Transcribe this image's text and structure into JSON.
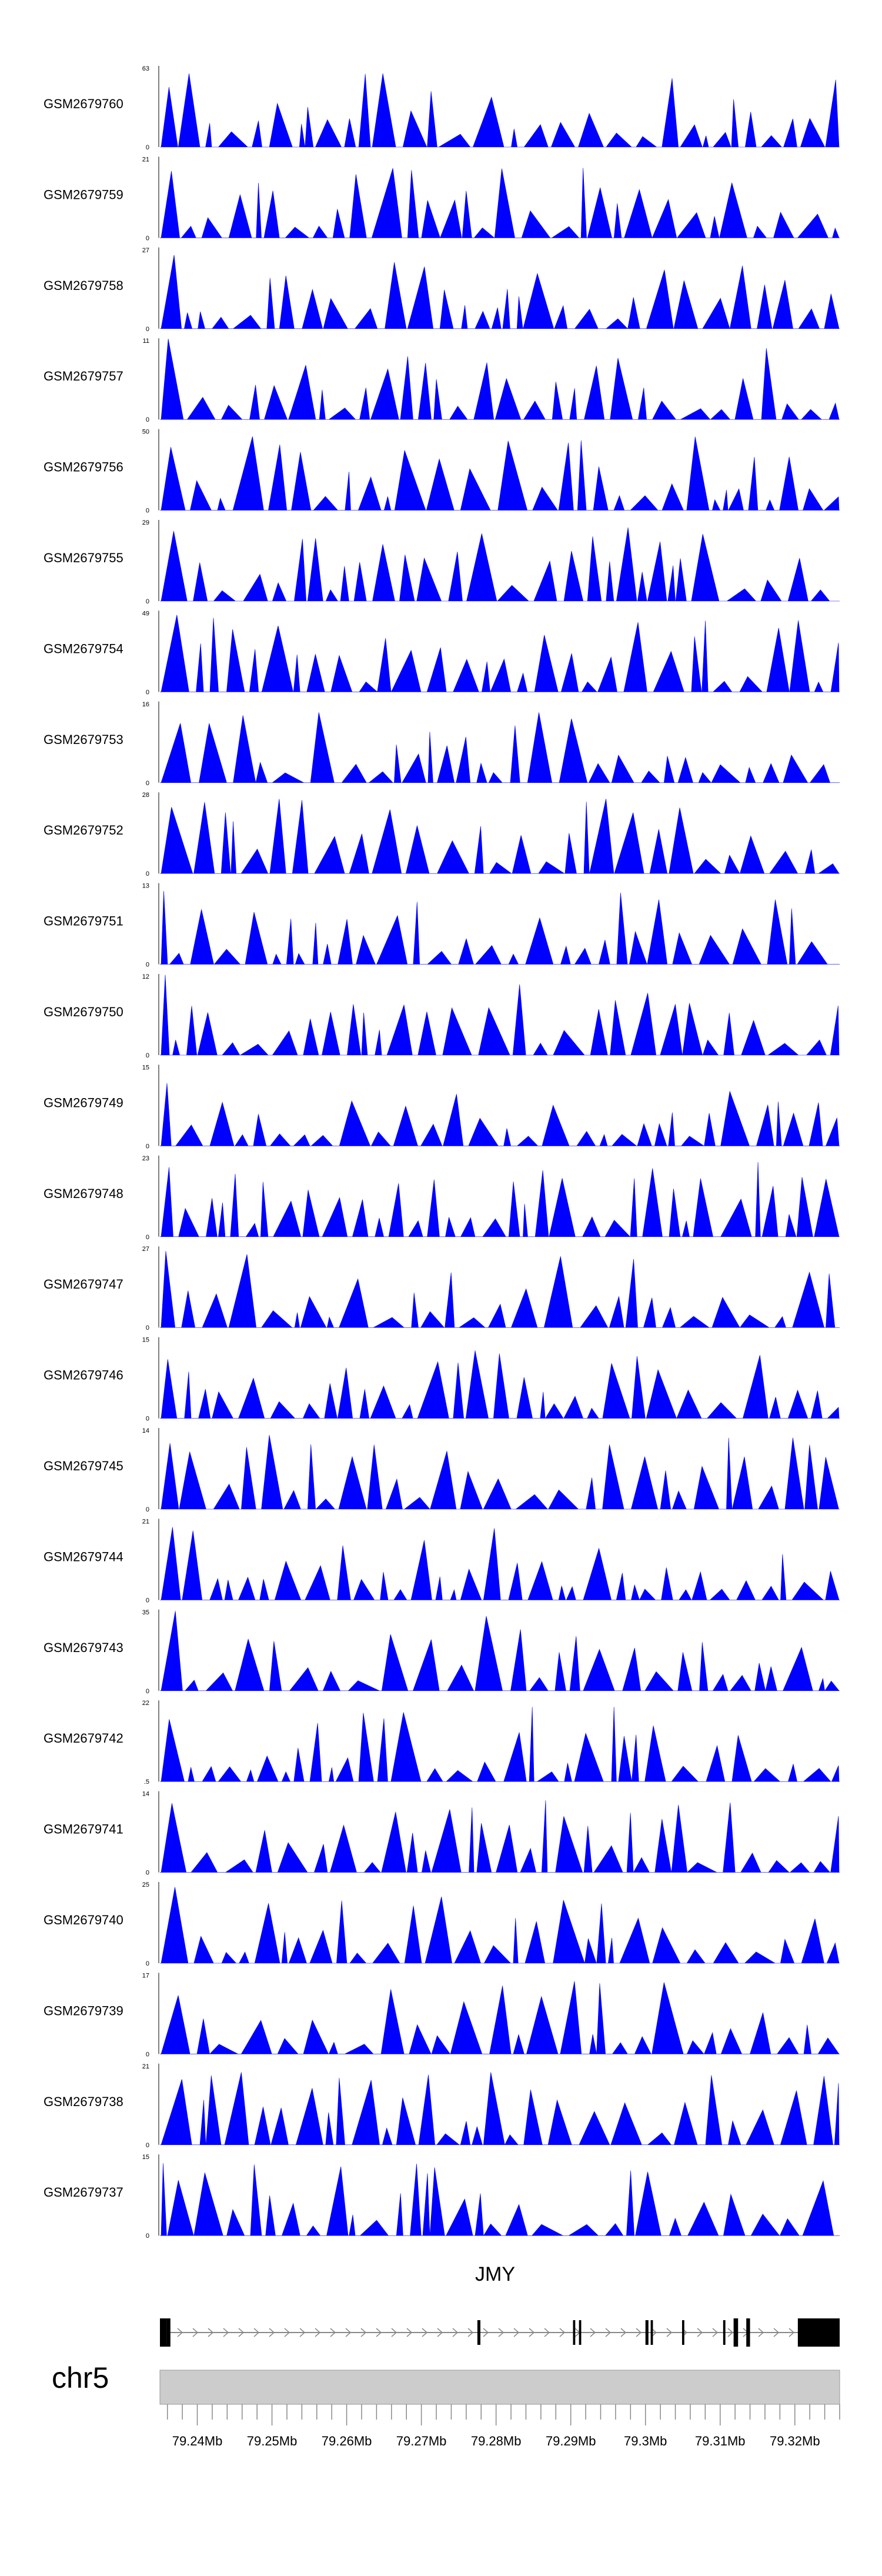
{
  "chart_data": {
    "type": "area",
    "series_color": "#0000ff",
    "gene_label": "JMY",
    "chromosome": "chr5",
    "region": {
      "start": 79235000,
      "end": 79326000
    },
    "x_ticks": [
      79240000,
      79250000,
      79260000,
      79270000,
      79280000,
      79290000,
      79300000,
      79310000,
      79320000
    ],
    "x_tick_labels": [
      "79.24Mb",
      "79.25Mb",
      "79.26Mb",
      "79.27Mb",
      "79.28Mb",
      "79.29Mb",
      "79.3Mb",
      "79.31Mb",
      "79.32Mb"
    ],
    "tracks": [
      {
        "name": "GSM2679760",
        "ymax": 63,
        "ymin_label": "0"
      },
      {
        "name": "GSM2679759",
        "ymax": 21,
        "ymin_label": "0"
      },
      {
        "name": "GSM2679758",
        "ymax": 27,
        "ymin_label": "0"
      },
      {
        "name": "GSM2679757",
        "ymax": 11,
        "ymin_label": "0"
      },
      {
        "name": "GSM2679756",
        "ymax": 50,
        "ymin_label": "0"
      },
      {
        "name": "GSM2679755",
        "ymax": 29,
        "ymin_label": "0"
      },
      {
        "name": "GSM2679754",
        "ymax": 49,
        "ymin_label": "0"
      },
      {
        "name": "GSM2679753",
        "ymax": 16,
        "ymin_label": "0"
      },
      {
        "name": "GSM2679752",
        "ymax": 28,
        "ymin_label": "0"
      },
      {
        "name": "GSM2679751",
        "ymax": 13,
        "ymin_label": "0"
      },
      {
        "name": "GSM2679750",
        "ymax": 12,
        "ymin_label": "0"
      },
      {
        "name": "GSM2679749",
        "ymax": 15,
        "ymin_label": "0"
      },
      {
        "name": "GSM2679748",
        "ymax": 23,
        "ymin_label": "0"
      },
      {
        "name": "GSM2679747",
        "ymax": 27,
        "ymin_label": "0"
      },
      {
        "name": "GSM2679746",
        "ymax": 15,
        "ymin_label": "0"
      },
      {
        "name": "GSM2679745",
        "ymax": 14,
        "ymin_label": "0"
      },
      {
        "name": "GSM2679744",
        "ymax": 21,
        "ymin_label": "0"
      },
      {
        "name": "GSM2679743",
        "ymax": 35,
        "ymin_label": "0"
      },
      {
        "name": "GSM2679742",
        "ymax": 22,
        "ymin_label": ".5"
      },
      {
        "name": "GSM2679741",
        "ymax": 14,
        "ymin_label": "0"
      },
      {
        "name": "GSM2679740",
        "ymax": 25,
        "ymin_label": "0"
      },
      {
        "name": "GSM2679739",
        "ymax": 17,
        "ymin_label": "0"
      },
      {
        "name": "GSM2679738",
        "ymax": 21,
        "ymin_label": "0"
      },
      {
        "name": "GSM2679737",
        "ymax": 15,
        "ymin_label": "0"
      }
    ],
    "exons": [
      {
        "start": 79235000,
        "end": 79235900,
        "thick": true
      },
      {
        "start": 79235900,
        "end": 79236400,
        "thick": true
      },
      {
        "start": 79277500,
        "end": 79277900,
        "thick": false
      },
      {
        "start": 79290300,
        "end": 79290600,
        "thick": false
      },
      {
        "start": 79291100,
        "end": 79291400,
        "thick": false
      },
      {
        "start": 79300000,
        "end": 79300400,
        "thick": false
      },
      {
        "start": 79300700,
        "end": 79301000,
        "thick": false
      },
      {
        "start": 79304900,
        "end": 79305200,
        "thick": false
      },
      {
        "start": 79310400,
        "end": 79310700,
        "thick": false
      },
      {
        "start": 79311800,
        "end": 79312400,
        "thick": true
      },
      {
        "start": 79313500,
        "end": 79314000,
        "thick": true
      },
      {
        "start": 79320400,
        "end": 79326000,
        "thick": true
      }
    ]
  }
}
